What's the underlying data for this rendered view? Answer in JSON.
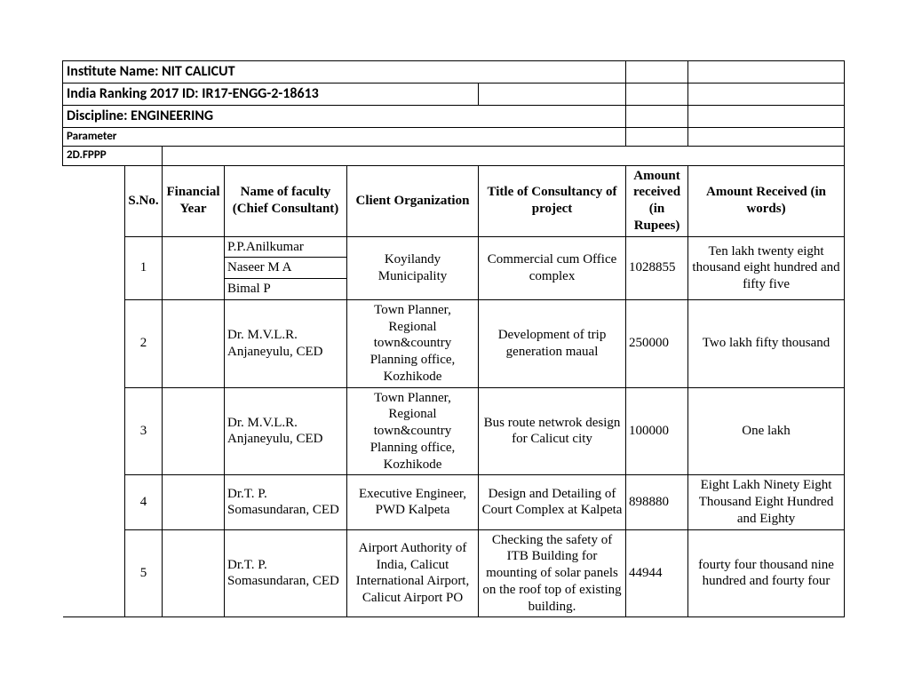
{
  "header": {
    "institute": "Institute Name: NIT CALICUT",
    "ranking_id": "India Ranking 2017 ID: IR17-ENGG-2-18613",
    "discipline": "Discipline: ENGINEERING",
    "parameter": "Parameter",
    "fppp": "2D.FPPP"
  },
  "columns": {
    "sno": "S.No.",
    "fy": "Financial Year",
    "faculty": "Name of faculty (Chief Consultant)",
    "client": "Client Organization",
    "title": "Title of Consultancy of project",
    "amount": "Amount received (in Rupees)",
    "amount_words": "Amount Received (in words)"
  },
  "rows": {
    "r1": {
      "sno": "1",
      "fac_a": "P.P.Anilkumar",
      "fac_b": "Naseer M A",
      "fac_c": "Bimal P",
      "client": "Koyilandy Municipality",
      "title": "Commercial cum Office complex",
      "amount": "1028855",
      "words": "Ten lakh twenty eight thousand eight hundred and fifty five"
    },
    "r2": {
      "sno": "2",
      "faculty": "Dr. M.V.L.R. Anjaneyulu, CED",
      "client": "Town Planner, Regional town&country Planning office, Kozhikode",
      "title": "Development of trip generation maual",
      "amount": "250000",
      "words": "Two lakh fifty thousand"
    },
    "r3": {
      "sno": "3",
      "faculty": "Dr. M.V.L.R. Anjaneyulu, CED",
      "client": "Town Planner, Regional town&country Planning office, Kozhikode",
      "title": "Bus route netwrok design for Calicut city",
      "amount": "100000",
      "words": "One lakh"
    },
    "r4": {
      "sno": "4",
      "faculty": "Dr.T. P. Somasundaran, CED",
      "client": "Executive Engineer, PWD Kalpeta",
      "title": "Design and Detailing of Court Complex at Kalpeta",
      "amount": "898880",
      "words": "Eight Lakh Ninety Eight Thousand Eight Hundred and Eighty"
    },
    "r5": {
      "sno": "5",
      "faculty": "Dr.T. P. Somasundaran, CED",
      "client": "Airport Authority of India, Calicut International Airport, Calicut Airport PO",
      "title": "Checking the safety of ITB Building for mounting of solar panels on the roof top of existing building.",
      "amount": "44944",
      "words": "fourty four thousand nine hundred and fourty four"
    }
  }
}
